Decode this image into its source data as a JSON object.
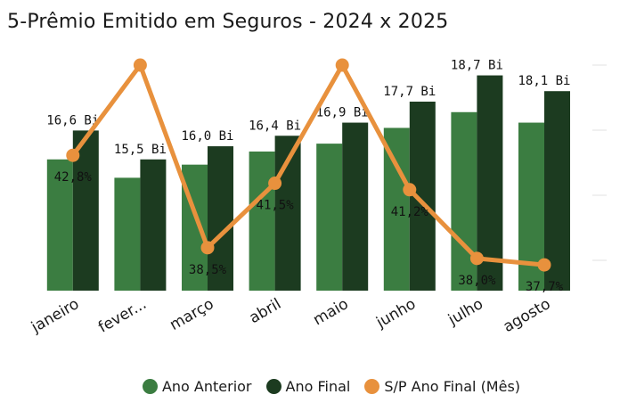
{
  "title": "5-Prêmio Emitido em Seguros - 2024 x 2025",
  "legend": {
    "items": [
      {
        "label": "Ano Anterior",
        "color": "#3b7d41"
      },
      {
        "label": "Ano Final",
        "color": "#1c3b20"
      },
      {
        "label": "S/P Ano Final (Mês)",
        "color": "#e8913d"
      }
    ]
  },
  "chart_data": {
    "type": "bar",
    "title": "5-Prêmio Emitido em Seguros - 2024 x 2025",
    "categories": [
      "janeiro",
      "fever...",
      "março",
      "abril",
      "maio",
      "junho",
      "julho",
      "agosto"
    ],
    "series": [
      {
        "name": "Ano Anterior",
        "type": "bar",
        "axis": "left",
        "color": "#3b7d41",
        "values": [
          15.5,
          14.8,
          15.3,
          15.8,
          16.1,
          16.7,
          17.3,
          16.9
        ]
      },
      {
        "name": "Ano Final",
        "type": "bar",
        "axis": "left",
        "color": "#1c3b20",
        "values": [
          16.6,
          15.5,
          16.0,
          16.4,
          16.9,
          17.7,
          18.7,
          18.1
        ],
        "labels": [
          "16,6 Bi",
          "15,5 Bi",
          "16,0 Bi",
          "16,4 Bi",
          "16,9 Bi",
          "17,7 Bi",
          "18,7 Bi",
          "18,1 Bi"
        ]
      },
      {
        "name": "S/P Ano Final (Mês)",
        "type": "line",
        "axis": "right",
        "color": "#e8913d",
        "values": [
          42.8,
          47.0,
          38.5,
          41.5,
          47.0,
          41.2,
          38.0,
          37.7
        ],
        "labels": [
          "42,8%",
          "",
          "38,5%",
          "41,5%",
          "",
          "41,2%",
          "38,0%",
          "37,7%"
        ]
      }
    ],
    "ylim_left": [
      10.5,
      19.5
    ],
    "ylim_right": [
      36.5,
      47.5
    ],
    "grid": false,
    "legend_position": "bottom"
  }
}
